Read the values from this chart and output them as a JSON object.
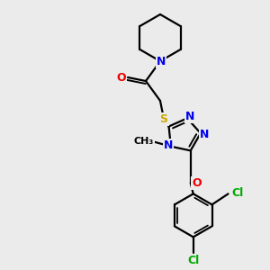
{
  "background_color": "#ebebeb",
  "atom_colors": {
    "C": "#000000",
    "N": "#0000ee",
    "O": "#ee0000",
    "S": "#ccaa00",
    "Cl": "#00aa00"
  },
  "figsize": [
    3.0,
    3.0
  ],
  "dpi": 100
}
